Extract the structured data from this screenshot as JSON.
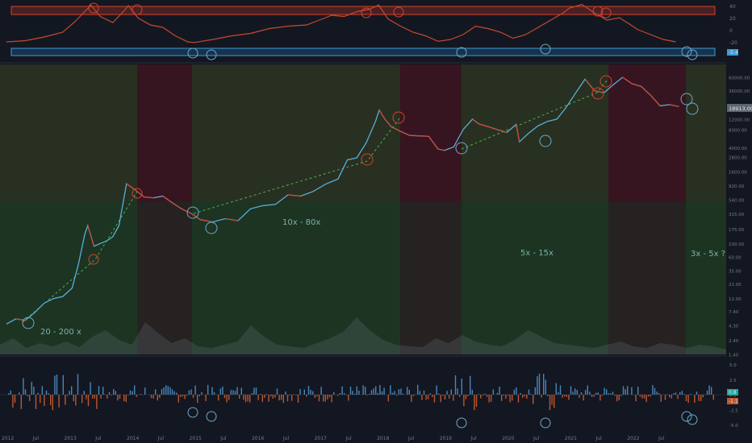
{
  "chart_data": [
    {
      "panel": "indicator-top",
      "type": "line",
      "title": "",
      "y_ticks": [
        "40",
        "20",
        "0",
        "-20"
      ],
      "last_value_label": "-5.4",
      "series": [
        {
          "x": [
            2012.0,
            2012.3,
            2012.6,
            2012.9,
            2013.1,
            2013.25,
            2013.35,
            2013.5,
            2013.7,
            2013.85,
            2013.95,
            2014.1,
            2014.3,
            2014.5,
            2014.7,
            2014.9,
            2015.0,
            2015.3,
            2015.6,
            2015.9,
            2016.2,
            2016.5,
            2016.8,
            2017.0,
            2017.2,
            2017.4,
            2017.6,
            2017.8,
            2017.95,
            2018.1,
            2018.3,
            2018.5,
            2018.7,
            2018.9,
            2019.1,
            2019.3,
            2019.5,
            2019.7,
            2019.9,
            2020.1,
            2020.3,
            2020.5,
            2020.7,
            2020.9,
            2021.0,
            2021.2,
            2021.4,
            2021.6,
            2021.8,
            2021.95,
            2022.1,
            2022.3,
            2022.5,
            2022.7
          ],
          "values": [
            -20,
            -18,
            -12,
            -4,
            14,
            30,
            41,
            22,
            12,
            28,
            40,
            20,
            8,
            4,
            -10,
            -20,
            -21,
            -16,
            -10,
            -6,
            2,
            6,
            8,
            16,
            24,
            22,
            30,
            34,
            41,
            18,
            6,
            -4,
            -10,
            -19,
            -16,
            -8,
            6,
            2,
            -4,
            -14,
            -8,
            4,
            16,
            28,
            36,
            42,
            28,
            16,
            20,
            10,
            0,
            -8,
            -16,
            -20
          ]
        }
      ]
    },
    {
      "panel": "price-main",
      "type": "line",
      "scale": "log",
      "title": "",
      "y_ticks": [
        "60000.00",
        "36000.00",
        "20000.00",
        "12000.00",
        "8000.00",
        "4000.00",
        "2800.00",
        "1600.00",
        "920.00",
        "540.00",
        "315.00",
        "175.00",
        "100.00",
        "60.00",
        "35.00",
        "21.00",
        "12.00",
        "7.40",
        "4.30",
        "2.40",
        "1.40"
      ],
      "last_price_label": "18913.00",
      "x_ticks": [
        "2012",
        "Jul",
        "2013",
        "Jul",
        "2014",
        "Jul",
        "2015",
        "Jul",
        "2016",
        "Jul",
        "2017",
        "Jul",
        "2018",
        "Jul",
        "2019",
        "Jul",
        "2020",
        "Jul",
        "2021",
        "Jul",
        "2022",
        "Jul"
      ],
      "annotations": [
        "20 - 200 x",
        "10x - 80x",
        "5x - 15x",
        "3x - 5x ?"
      ],
      "series": [
        {
          "x": [
            2012.0,
            2012.15,
            2012.3,
            2012.45,
            2012.6,
            2012.75,
            2012.9,
            2013.05,
            2013.15,
            2013.25,
            2013.3,
            2013.4,
            2013.5,
            2013.6,
            2013.7,
            2013.8,
            2013.92,
            2014.05,
            2014.2,
            2014.35,
            2014.5,
            2014.65,
            2014.8,
            2014.95,
            2015.1,
            2015.3,
            2015.5,
            2015.7,
            2015.9,
            2016.1,
            2016.3,
            2016.5,
            2016.7,
            2016.9,
            2017.1,
            2017.3,
            2017.45,
            2017.6,
            2017.75,
            2017.9,
            2017.96,
            2018.05,
            2018.15,
            2018.3,
            2018.45,
            2018.6,
            2018.75,
            2018.9,
            2019.0,
            2019.15,
            2019.3,
            2019.45,
            2019.55,
            2019.7,
            2019.85,
            2020.0,
            2020.15,
            2020.2,
            2020.35,
            2020.5,
            2020.65,
            2020.8,
            2020.95,
            2021.1,
            2021.25,
            2021.4,
            2021.55,
            2021.7,
            2021.85,
            2022.0,
            2022.15,
            2022.3,
            2022.45,
            2022.6,
            2022.75
          ],
          "values": [
            4.5,
            5.5,
            5.2,
            7,
            10,
            12,
            13,
            18,
            45,
            140,
            200,
            90,
            100,
            110,
            130,
            200,
            1000,
            800,
            600,
            580,
            620,
            480,
            380,
            320,
            250,
            230,
            260,
            240,
            380,
            430,
            450,
            650,
            620,
            740,
            980,
            1200,
            2500,
            2700,
            4800,
            11000,
            17000,
            12000,
            9000,
            7500,
            6400,
            6300,
            6200,
            3800,
            3600,
            4100,
            8000,
            12000,
            10000,
            9000,
            8000,
            7200,
            9800,
            5000,
            7000,
            9300,
            11000,
            12000,
            19000,
            33000,
            56000,
            36000,
            33000,
            45000,
            60000,
            47000,
            42000,
            30000,
            20000,
            21000,
            19500
          ]
        }
      ]
    },
    {
      "panel": "oscillator-bottom",
      "type": "bar",
      "title": "",
      "y_ticks": [
        "5.0",
        "2.5",
        "0.0",
        "-2.5",
        "-5.0"
      ],
      "last_value_labels": [
        "0.8",
        "-1.1"
      ]
    }
  ]
}
